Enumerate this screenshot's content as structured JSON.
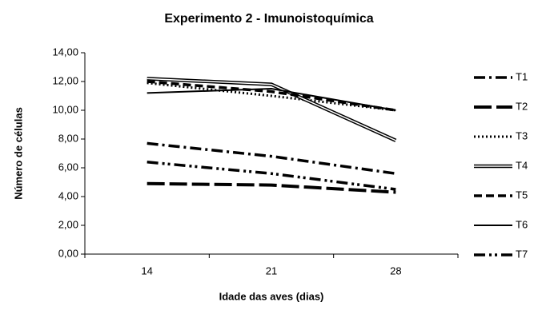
{
  "chart_data": {
    "type": "line",
    "title": "Experimento 2 - Imunoistoquímica",
    "x_label": "Idade das aves (dias)",
    "y_label": "Número de células",
    "categories": [
      "14",
      "21",
      "28"
    ],
    "ylim": [
      0,
      14
    ],
    "yticks": [
      {
        "value": 0,
        "label": "0,00"
      },
      {
        "value": 2,
        "label": "2,00"
      },
      {
        "value": 4,
        "label": "4,00"
      },
      {
        "value": 6,
        "label": "6,00"
      },
      {
        "value": 8,
        "label": "8,00"
      },
      {
        "value": 10,
        "label": "10,00"
      },
      {
        "value": 12,
        "label": "12,00"
      },
      {
        "value": 14,
        "label": "14,00"
      }
    ],
    "grid": false,
    "legend": "right",
    "series": [
      {
        "name": "T1",
        "color": "#000000",
        "dash": "14,5,3,5",
        "width": 3.5,
        "values": [
          7.7,
          6.8,
          5.6
        ]
      },
      {
        "name": "T2",
        "color": "#000000",
        "dash": "22,6",
        "width": 4,
        "values": [
          4.9,
          4.8,
          4.3
        ]
      },
      {
        "name": "T3",
        "color": "#000000",
        "dash": "2,3",
        "width": 3,
        "values": [
          11.9,
          11.0,
          10.0
        ]
      },
      {
        "name": "T4",
        "color": "#000000",
        "dash": "double",
        "width": 4.5,
        "values": [
          12.2,
          11.8,
          7.9
        ]
      },
      {
        "name": "T5",
        "color": "#000000",
        "dash": "10,5",
        "width": 3.5,
        "values": [
          12.0,
          11.3,
          10.0
        ]
      },
      {
        "name": "T6",
        "color": "#000000",
        "dash": "none",
        "width": 2,
        "values": [
          11.2,
          11.5,
          10.0
        ]
      },
      {
        "name": "T7",
        "color": "#000000",
        "dash": "14,5,3,4,3,5",
        "width": 3.5,
        "values": [
          6.4,
          5.6,
          4.5
        ]
      }
    ]
  }
}
